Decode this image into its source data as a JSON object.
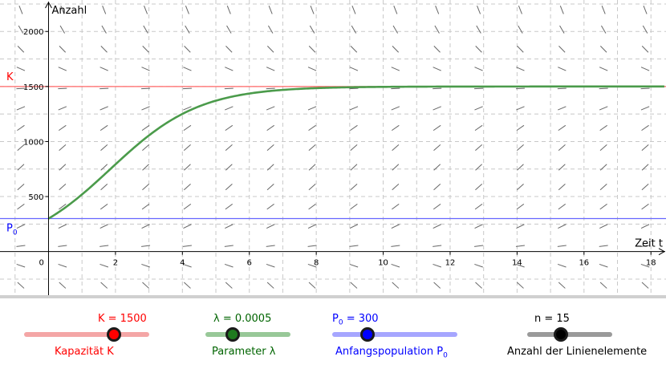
{
  "graph": {
    "y_axis_label": "Anzahl",
    "x_axis_label": "Zeit t",
    "x_ticks": [
      0,
      2,
      4,
      6,
      8,
      10,
      12,
      14,
      16,
      18
    ],
    "y_ticks": [
      500,
      1000,
      1500,
      2000
    ],
    "xlim": [
      -1.45,
      18.45
    ],
    "ylim": [
      -396,
      2286
    ],
    "grid": true,
    "line_K_label": "K",
    "line_P0_label": "P",
    "line_P0_sub": "0",
    "colors": {
      "K": "#ff6666",
      "P0": "#6666ff",
      "curve": "#4b9b4b",
      "direction": "#666666",
      "grid": "#c8c8c8"
    }
  },
  "chart_data": {
    "type": "line",
    "title": "",
    "xlabel": "Zeit t",
    "ylabel": "Anzahl",
    "series": [
      {
        "name": "",
        "model": "logistic",
        "K": 1500,
        "lambda": 0.0005,
        "P0": 300,
        "x_range": [
          0,
          18.45
        ]
      }
    ],
    "horizontal_lines": [
      {
        "label": "K",
        "y": 1500
      },
      {
        "label": "P0",
        "y": 300
      }
    ],
    "direction_field_n": 15
  },
  "sliders": {
    "K": {
      "value_label": "K = 1500",
      "caption": "Kapazität K",
      "value": 1500,
      "fraction": 0.72,
      "color": "#ff0000",
      "track": "#f4a6a6",
      "text": "#ff0000"
    },
    "lambda": {
      "value_label": "λ = 0.0005",
      "caption": "Parameter λ",
      "value": 0.0005,
      "fraction": 0.32,
      "color": "#1f7a1f",
      "track": "#98c898",
      "text": "#006400"
    },
    "P0": {
      "value_prefix": "P",
      "value_sub": "0",
      "value_suffix": " = 300",
      "caption_prefix": "Anfangspopulation P",
      "caption_sub": "0",
      "value": 300,
      "fraction": 0.28,
      "color": "#0000ff",
      "track": "#a6a6ff",
      "text": "#0000ff"
    },
    "n": {
      "value_label": "n = 15",
      "caption": "Anzahl der Linienelemente",
      "value": 15,
      "fraction": 0.4,
      "color": "#000000",
      "track": "#9a9a9a",
      "text": "#000000"
    }
  }
}
